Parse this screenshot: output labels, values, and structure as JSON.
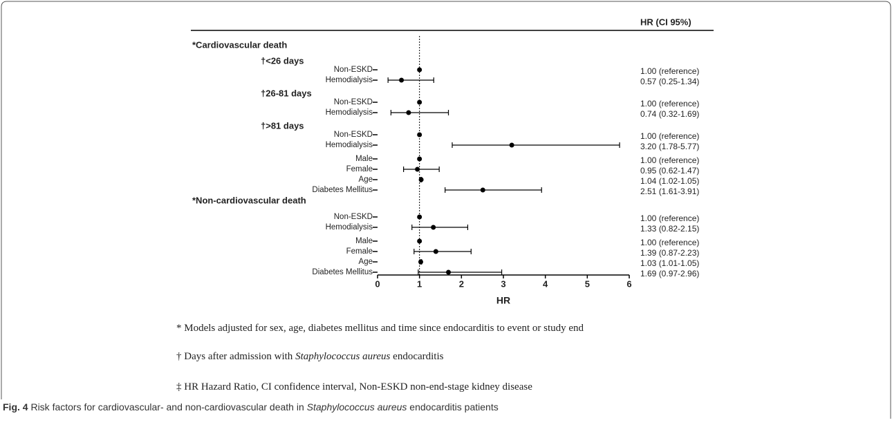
{
  "chart_data": {
    "type": "forest",
    "column_header": "HR (CI 95%)",
    "xlabel": "HR",
    "xlim": [
      0,
      6
    ],
    "xticks": [
      0,
      1,
      2,
      3,
      4,
      5,
      6
    ],
    "reference_line": 1,
    "color": "#000000",
    "sections": [
      {
        "title": "*Cardiovascular death",
        "groups": [
          {
            "title": "†<26 days",
            "rows": [
              {
                "label": "Non-ESKD",
                "value": 1,
                "value_label": "1.00 (reference)"
              },
              {
                "label": "Hemodialysis",
                "value": 0.57,
                "ci": [
                  0.25,
                  1.34
                ],
                "value_label": "0.57 (0.25-1.34)"
              }
            ]
          },
          {
            "title": "†26-81 days",
            "rows": [
              {
                "label": "Non-ESKD",
                "value": 1,
                "value_label": "1.00 (reference)"
              },
              {
                "label": "Hemodialysis",
                "value": 0.74,
                "ci": [
                  0.32,
                  1.69
                ],
                "value_label": "0.74 (0.32-1.69)"
              }
            ]
          },
          {
            "title": "†>81 days",
            "rows": [
              {
                "label": "Non-ESKD",
                "value": 1,
                "value_label": "1.00 (reference)"
              },
              {
                "label": "Hemodialysis",
                "value": 3.2,
                "ci": [
                  1.78,
                  5.77
                ],
                "value_label": "3.20 (1.78-5.77)"
              }
            ]
          },
          {
            "rows": [
              {
                "label": "Male",
                "value": 1,
                "value_label": "1.00 (reference)"
              },
              {
                "label": "Female",
                "value": 0.95,
                "ci": [
                  0.62,
                  1.47
                ],
                "value_label": "0.95 (0.62-1.47)"
              },
              {
                "label": "Age",
                "value": 1.04,
                "ci": [
                  1.02,
                  1.05
                ],
                "value_label": "1.04 (1.02-1.05)"
              },
              {
                "label": "Diabetes Mellitus",
                "value": 2.51,
                "ci": [
                  1.61,
                  3.91
                ],
                "value_label": "2.51 (1.61-3.91)"
              }
            ]
          }
        ]
      },
      {
        "title": "*Non-cardiovascular death",
        "groups": [
          {
            "rows": [
              {
                "label": "Non-ESKD",
                "value": 1,
                "value_label": "1.00 (reference)"
              },
              {
                "label": "Hemodialysis",
                "value": 1.33,
                "ci": [
                  0.82,
                  2.15
                ],
                "value_label": "1.33 (0.82-2.15)"
              }
            ]
          },
          {
            "rows": [
              {
                "label": "Male",
                "value": 1,
                "value_label": "1.00 (reference)"
              },
              {
                "label": "Female",
                "value": 1.39,
                "ci": [
                  0.87,
                  2.23
                ],
                "value_label": "1.39 (0.87-2.23)"
              },
              {
                "label": "Age",
                "value": 1.03,
                "ci": [
                  1.01,
                  1.05
                ],
                "value_label": "1.03 (1.01-1.05)"
              },
              {
                "label": "Diabetes Mellitus",
                "value": 1.69,
                "ci": [
                  0.97,
                  2.96
                ],
                "value_label": "1.69 (0.97-2.96)"
              }
            ]
          }
        ]
      }
    ]
  },
  "footnotes": [
    [
      {
        "text": "* Models adjusted for sex, age, diabetes mellitus and time since endocarditis to event or study end"
      }
    ],
    [
      {
        "text": "† Days after admission with "
      },
      {
        "text": "Staphylococcus aureus",
        "italic": true
      },
      {
        "text": " endocarditis"
      }
    ],
    [
      {
        "text": "‡ HR Hazard Ratio, CI confidence interval, Non-ESKD non-end-stage kidney disease"
      }
    ]
  ],
  "caption": [
    {
      "text": "Fig. 4",
      "bold": true
    },
    {
      "text": " Risk factors for cardiovascular- and non-cardiovascular death in "
    },
    {
      "text": "Staphylococcus aureus",
      "italic": true
    },
    {
      "text": " endocarditis patients"
    }
  ]
}
